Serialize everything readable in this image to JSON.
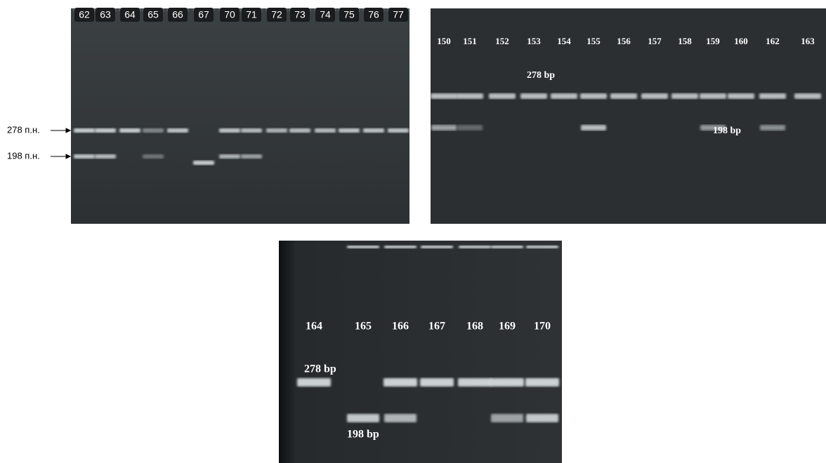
{
  "panel_1": {
    "lanes": [
      "62",
      "63",
      "64",
      "65",
      "66",
      "67",
      "70",
      "71",
      "72",
      "73",
      "74",
      "75",
      "76",
      "77"
    ],
    "markers": [
      "278 п.н.",
      "198 п.н."
    ]
  },
  "panel_2": {
    "lanes": [
      "150",
      "151",
      "152",
      "153",
      "154",
      "155",
      "156",
      "157",
      "158",
      "159",
      "160",
      "162",
      "163"
    ],
    "markers": [
      "278 bp",
      "198 bp"
    ]
  },
  "panel_3": {
    "lanes": [
      "164",
      "165",
      "166",
      "167",
      "168",
      "169",
      "170"
    ],
    "markers": [
      "278 bp",
      "198 bp"
    ]
  }
}
